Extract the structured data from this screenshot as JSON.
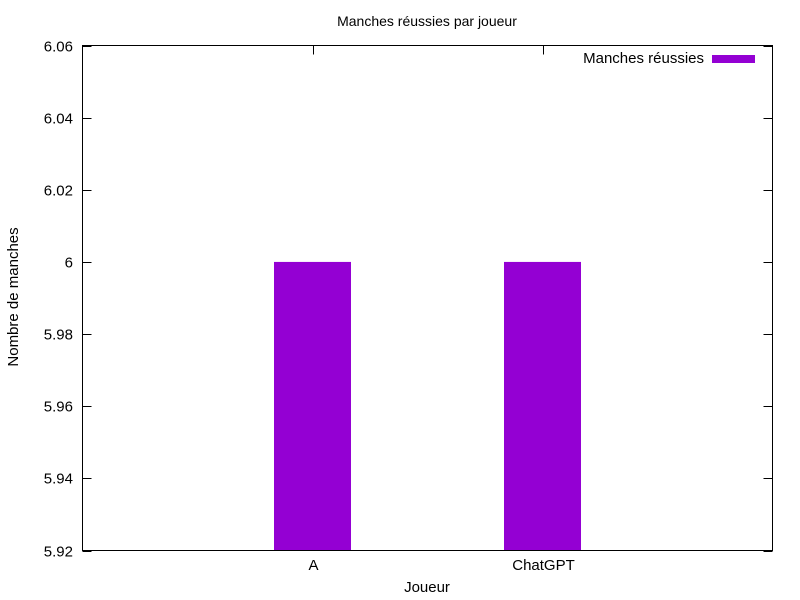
{
  "chart_data": {
    "type": "bar",
    "title": "Manches réussies par joueur",
    "xlabel": "Joueur",
    "ylabel": "Nombre de manches",
    "categories": [
      "A",
      "ChatGPT"
    ],
    "series": [
      {
        "name": "Manches réussies",
        "values": [
          6,
          6
        ],
        "color": "#9400d3"
      }
    ],
    "ylim": [
      5.92,
      6.06
    ],
    "yticks": [
      "5.92",
      "5.94",
      "5.96",
      "5.98",
      "6",
      "6.02",
      "6.04",
      "6.06"
    ],
    "xlim": [
      -1,
      2
    ],
    "legend_position": "top-right",
    "grid": false
  }
}
